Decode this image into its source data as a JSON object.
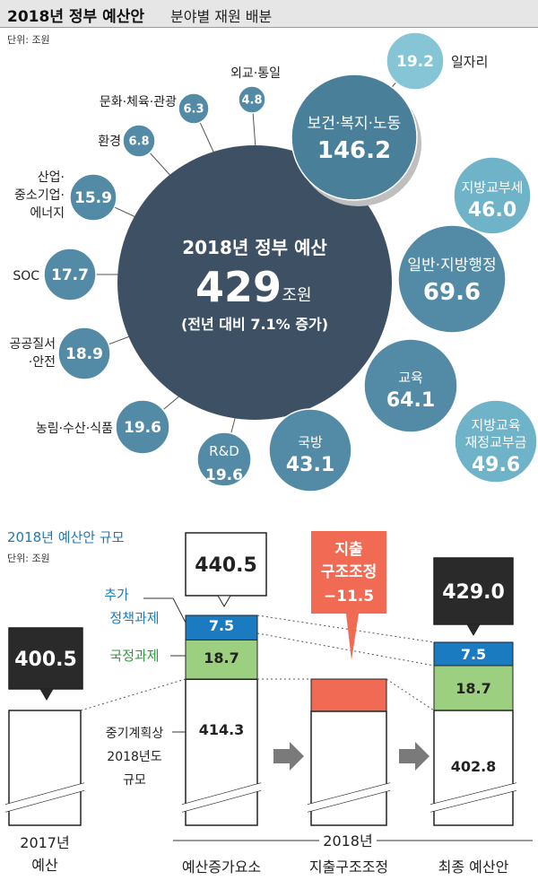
{
  "header": {
    "title": "2018년 정부 예산안",
    "subtitle": "분야별 재원 배분"
  },
  "unit_label": "단위: 조원",
  "colors": {
    "center": "#3e5164",
    "big": "#4a7f99",
    "mid": "#538ba6",
    "light": "#6fb3c8",
    "lightest": "#86c5d6",
    "blue": "#1a7bc0",
    "green": "#9ccf80",
    "red": "#f06a54",
    "dark": "#2a2a2a"
  },
  "chart_data": [
    {
      "type": "bubble",
      "title": "2018년 정부 예산안 분야별 재원 배분",
      "unit": "조원",
      "total": {
        "label": "2018년 정부 예산",
        "value": 429,
        "unit": "조원",
        "note": "(전년 대비 7.1% 증가)"
      },
      "items": [
        {
          "name": "보건·복지·노동",
          "value": 146.2
        },
        {
          "name": "일자리",
          "value": 19.2
        },
        {
          "name": "일반·지방행정",
          "value": 69.6
        },
        {
          "name": "지방교부세",
          "value": 46.0
        },
        {
          "name": "교육",
          "value": 64.1
        },
        {
          "name": "지방교육재정교부금",
          "value": 49.6
        },
        {
          "name": "국방",
          "value": 43.1
        },
        {
          "name": "R&D",
          "value": 19.6
        },
        {
          "name": "농림·수산·식품",
          "value": 19.6
        },
        {
          "name": "공공질서·안전",
          "value": 18.9
        },
        {
          "name": "SOC",
          "value": 17.7
        },
        {
          "name": "산업·중소기업·에너지",
          "value": 15.9
        },
        {
          "name": "환경",
          "value": 6.8
        },
        {
          "name": "문화·체육·관광",
          "value": 6.3
        },
        {
          "name": "외교·통일",
          "value": 4.8
        }
      ]
    },
    {
      "type": "bar",
      "title": "2018년 예산안 규모",
      "unit": "조원",
      "categories": [
        "2017년 예산",
        "예산증가요소",
        "지출구조조정",
        "최종 예산안"
      ],
      "group_label": "2018년",
      "totals": [
        400.5,
        440.5,
        -11.5,
        429.0
      ],
      "segments": {
        "base": [
          400.5,
          414.3,
          null,
          402.8
        ],
        "national_tasks": [
          null,
          18.7,
          null,
          18.7
        ],
        "additional_policy": [
          null,
          7.5,
          null,
          7.5
        ],
        "restructuring": [
          null,
          null,
          -11.5,
          null
        ]
      },
      "legend": {
        "additional_policy": "추가 정책과제",
        "national_tasks": "국정과제",
        "base": "중기계획상 2018년도 규모"
      },
      "callout_restructuring": {
        "label": "지출 구조조정",
        "value": "−11.5"
      }
    }
  ]
}
